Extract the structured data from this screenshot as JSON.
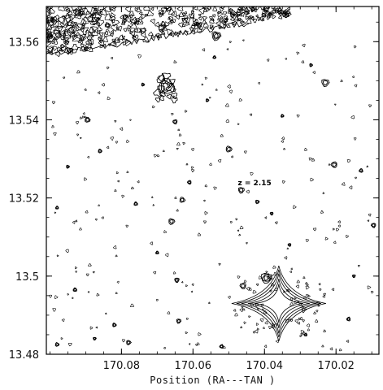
{
  "chart_data": {
    "type": "contour",
    "xlabel": "Position (RA---TAN )",
    "ylabel": "",
    "x_ticks": [
      "170.08",
      "170.06",
      "170.04",
      "170.02"
    ],
    "y_ticks": [
      "13.56",
      "13.54",
      "13.52",
      "13.5",
      "13.48"
    ],
    "xlim": [
      170.101,
      170.008
    ],
    "ylim": [
      13.48,
      13.569
    ],
    "grid": false,
    "annotations": [
      {
        "text": "z = 2.15",
        "ra": 170.047,
        "dec": 13.522
      }
    ],
    "features": [
      {
        "kind": "diffuse-band",
        "location": "top-left corner, decreasing toward right"
      },
      {
        "kind": "bright-star-diffraction-spikes",
        "ra": 170.036,
        "dec": 13.493
      }
    ],
    "sources": [
      {
        "ra": 170.0535,
        "dec": 13.5615,
        "r": 0.0012
      },
      {
        "ra": 170.023,
        "dec": 13.5495,
        "r": 0.001
      },
      {
        "ra": 170.0675,
        "dec": 13.5485,
        "r": 0.0022
      },
      {
        "ra": 170.0895,
        "dec": 13.54,
        "r": 0.0007
      },
      {
        "ra": 170.065,
        "dec": 13.5395,
        "r": 0.0006
      },
      {
        "ra": 170.006,
        "dec": 13.536,
        "r": 0.0006
      },
      {
        "ra": 170.05,
        "dec": 13.5325,
        "r": 0.0008
      },
      {
        "ra": 170.086,
        "dec": 13.532,
        "r": 0.0005
      },
      {
        "ra": 170.0205,
        "dec": 13.5285,
        "r": 0.0008
      },
      {
        "ra": 170.013,
        "dec": 13.527,
        "r": 0.0005
      },
      {
        "ra": 170.0465,
        "dec": 13.522,
        "r": 0.0008
      },
      {
        "ra": 170.061,
        "dec": 13.524,
        "r": 0.0005
      },
      {
        "ra": 170.063,
        "dec": 13.5195,
        "r": 0.0007
      },
      {
        "ra": 170.042,
        "dec": 13.519,
        "r": 0.0005
      },
      {
        "ra": 170.076,
        "dec": 13.5185,
        "r": 0.0005
      },
      {
        "ra": 170.066,
        "dec": 13.514,
        "r": 0.0008
      },
      {
        "ra": 170.038,
        "dec": 13.516,
        "r": 0.0004
      },
      {
        "ra": 170.0095,
        "dec": 13.513,
        "r": 0.0006
      },
      {
        "ra": 170.098,
        "dec": 13.5175,
        "r": 0.0004
      },
      {
        "ra": 170.0395,
        "dec": 13.4995,
        "r": 0.0014
      },
      {
        "ra": 170.046,
        "dec": 13.4975,
        "r": 0.0008
      },
      {
        "ra": 170.0645,
        "dec": 13.499,
        "r": 0.0006
      },
      {
        "ra": 170.093,
        "dec": 13.4965,
        "r": 0.0005
      },
      {
        "ra": 170.064,
        "dec": 13.4885,
        "r": 0.0006
      },
      {
        "ra": 170.082,
        "dec": 13.4875,
        "r": 0.0005
      },
      {
        "ra": 170.0165,
        "dec": 13.489,
        "r": 0.0005
      },
      {
        "ra": 170.078,
        "dec": 13.483,
        "r": 0.0006
      },
      {
        "ra": 170.098,
        "dec": 13.4825,
        "r": 0.0005
      },
      {
        "ra": 170.052,
        "dec": 13.482,
        "r": 0.0005
      },
      {
        "ra": 170.0875,
        "dec": 13.484,
        "r": 0.0004
      },
      {
        "ra": 170.0285,
        "dec": 13.485,
        "r": 0.0004
      },
      {
        "ra": 170.074,
        "dec": 13.549,
        "r": 0.0004
      },
      {
        "ra": 170.027,
        "dec": 13.554,
        "r": 0.0004
      },
      {
        "ra": 170.056,
        "dec": 13.545,
        "r": 0.0004
      },
      {
        "ra": 170.035,
        "dec": 13.541,
        "r": 0.0004
      },
      {
        "ra": 170.095,
        "dec": 13.528,
        "r": 0.0004
      },
      {
        "ra": 170.033,
        "dec": 13.508,
        "r": 0.0004
      },
      {
        "ra": 170.07,
        "dec": 13.506,
        "r": 0.0004
      },
      {
        "ra": 170.015,
        "dec": 13.5,
        "r": 0.0004
      },
      {
        "ra": 170.054,
        "dec": 13.556,
        "r": 0.0004
      }
    ]
  }
}
